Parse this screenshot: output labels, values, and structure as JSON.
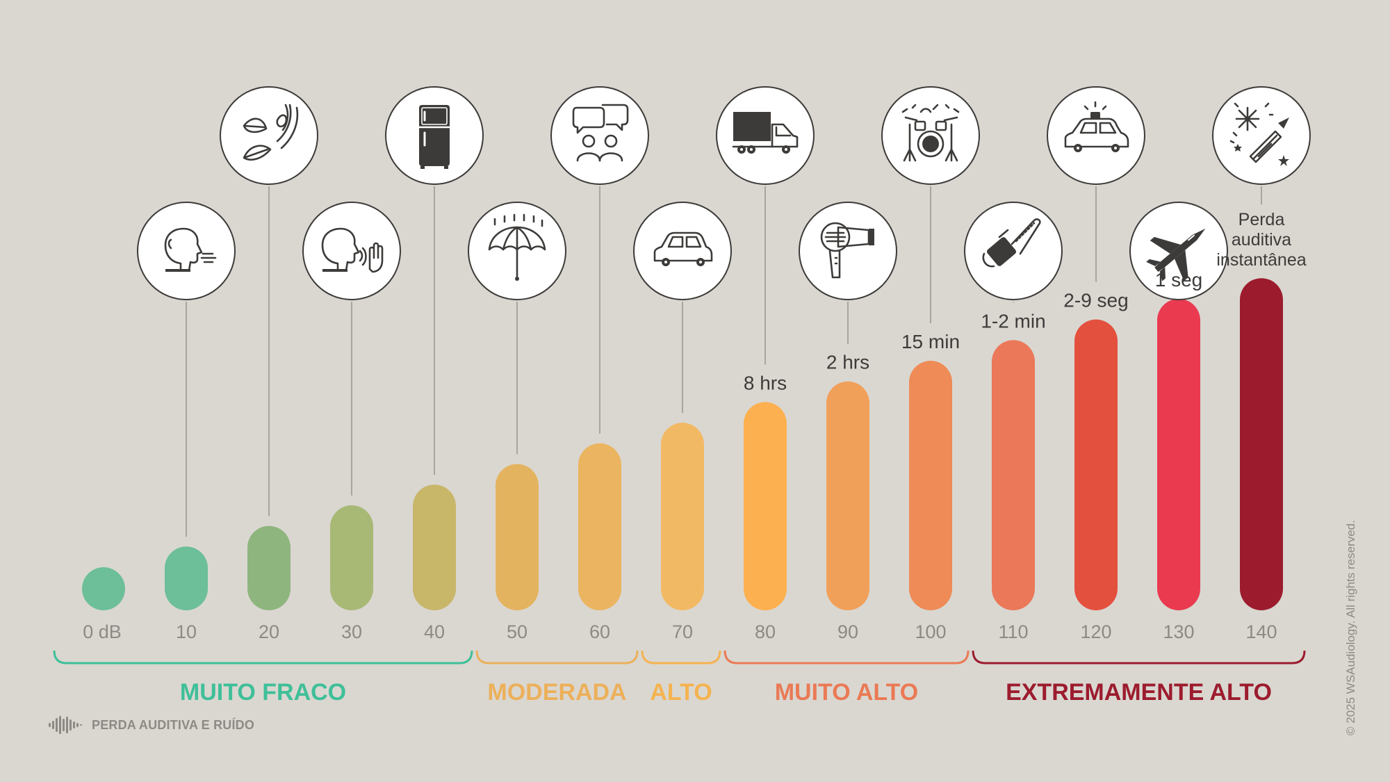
{
  "chart_data": {
    "type": "bar",
    "title": "",
    "xlabel": "",
    "ylabel": "",
    "ylim": [
      0,
      140
    ],
    "grid": false,
    "categories": [
      "0 dB",
      "10",
      "20",
      "30",
      "40",
      "50",
      "60",
      "70",
      "80",
      "90",
      "100",
      "110",
      "120",
      "130",
      "140"
    ],
    "values": [
      0,
      10,
      20,
      30,
      40,
      50,
      60,
      70,
      80,
      90,
      100,
      110,
      120,
      130,
      140
    ],
    "bar_colors": [
      "#6cbf98",
      "#6cbf98",
      "#8fb57e",
      "#a8b976",
      "#c8b669",
      "#e4b35f",
      "#ebb460",
      "#f2b965",
      "#fdb04f",
      "#f1a05a",
      "#ee8b56",
      "#eb7858",
      "#e4503e",
      "#ea3a50",
      "#9c1c2e"
    ],
    "icons": [
      "",
      "breathing-icon",
      "rustling-leaves-icon",
      "whisper-icon",
      "refrigerator-icon",
      "rain-umbrella-icon",
      "conversation-icon",
      "car-icon",
      "truck-icon",
      "hair-dryer-icon",
      "drum-kit-icon",
      "chainsaw-icon",
      "siren-car-icon",
      "jet-plane-icon",
      "fireworks-icon"
    ],
    "exposure_times": [
      "",
      "",
      "",
      "",
      "",
      "",
      "",
      "",
      "8 hrs",
      "2 hrs",
      "15 min",
      "1-2 min",
      "2-9 seg",
      "1 seg",
      "Perda auditiva instantânea"
    ],
    "groups": [
      {
        "label": "MUITO FRACO",
        "from": 0,
        "to": 4,
        "color": "#3fbf98"
      },
      {
        "label": "MODERADA",
        "from": 5,
        "to": 6,
        "color": "#ecb05a"
      },
      {
        "label": "ALTO",
        "from": 7,
        "to": 7,
        "color": "#f5b350"
      },
      {
        "label": "MUITO ALTO",
        "from": 8,
        "to": 10,
        "color": "#ea7a55"
      },
      {
        "label": "EXTREMAMENTE ALTO",
        "from": 11,
        "to": 14,
        "color": "#9c1c2e"
      }
    ]
  },
  "footer": {
    "label": "PERDA AUDITIVA E RUÍDO",
    "icon": "sound-wave-icon"
  },
  "copyright": "© 2025 WSAudiology. All rights reserved.",
  "colors": {
    "background": "#dad7d1",
    "ink": "#3d3b39",
    "muted": "#8d8a85"
  }
}
